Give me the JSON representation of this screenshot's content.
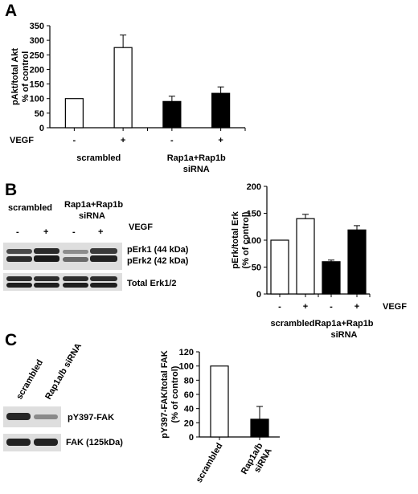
{
  "panels": {
    "a": {
      "letter": "A"
    },
    "b": {
      "letter": "B",
      "blot": {
        "group_labels": [
          "scrambled",
          "Rap1a+Rap1b",
          "siRNA"
        ],
        "treatment_label": "VEGF",
        "lane_signs": [
          "-",
          "+",
          "-",
          "+"
        ],
        "band_labels": [
          "pErk1 (44 kDa)",
          "pErk2 (42 kDa)",
          "Total Erk1/2"
        ]
      }
    },
    "c": {
      "letter": "C",
      "blot": {
        "lane_labels": [
          "scrambled",
          "Rap1a/b siRNA"
        ],
        "band_labels": [
          "pY397-FAK",
          "FAK (125kDa)"
        ]
      }
    }
  },
  "chart_data": [
    {
      "id": "A",
      "type": "bar",
      "ylabel": [
        "pAkt/total Akt",
        "% of control"
      ],
      "ylim": [
        0,
        350
      ],
      "yticks": [
        0,
        50,
        100,
        150,
        200,
        250,
        300,
        350
      ],
      "treatment_label": "VEGF",
      "categories": [
        "-",
        "+",
        "-",
        "+"
      ],
      "values": [
        100,
        275,
        90,
        118
      ],
      "errors": [
        0,
        43,
        18,
        22
      ],
      "fills": [
        "#ffffff",
        "#ffffff",
        "#000000",
        "#000000"
      ],
      "groups": [
        {
          "label": [
            "scrambled"
          ],
          "bars": [
            0,
            1
          ]
        },
        {
          "label": [
            "Rap1a+Rap1b",
            "siRNA"
          ],
          "bars": [
            2,
            3
          ]
        }
      ]
    },
    {
      "id": "B",
      "type": "bar",
      "ylabel": [
        "pErk/total Erk",
        "(% of control)"
      ],
      "ylim": [
        0,
        200
      ],
      "yticks": [
        0,
        50,
        100,
        150,
        200
      ],
      "treatment_label": "VEGF",
      "categories": [
        "-",
        "+",
        "-",
        "+"
      ],
      "values": [
        100,
        140,
        60,
        119
      ],
      "errors": [
        0,
        8,
        3,
        8
      ],
      "fills": [
        "#ffffff",
        "#ffffff",
        "#000000",
        "#000000"
      ],
      "groups": [
        {
          "label": [
            "scrambled"
          ],
          "bars": [
            0,
            1
          ]
        },
        {
          "label": [
            "Rap1a+Rap1b",
            "siRNA"
          ],
          "bars": [
            2,
            3
          ]
        }
      ]
    },
    {
      "id": "C",
      "type": "bar",
      "ylabel": [
        "pY397-FAK/total FAK",
        "(% of control)"
      ],
      "ylim": [
        0,
        120
      ],
      "yticks": [
        0,
        20,
        40,
        60,
        80,
        100,
        120
      ],
      "categories": [
        "scrambled",
        "Rap1a/b siRNA"
      ],
      "category_lines": [
        [
          "scrambled"
        ],
        [
          "Rap1a/b",
          "siRNA"
        ]
      ],
      "values": [
        100,
        25
      ],
      "errors": [
        0,
        18
      ],
      "fills": [
        "#ffffff",
        "#000000"
      ]
    }
  ]
}
